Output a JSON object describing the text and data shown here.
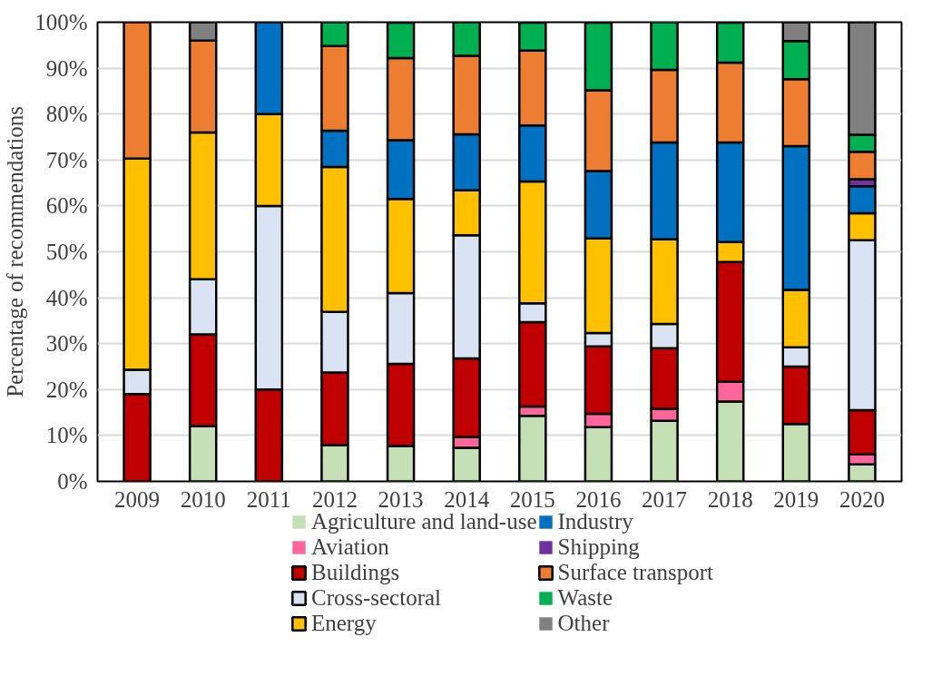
{
  "chart_data": {
    "type": "bar",
    "stacked": true,
    "ylabel": "Percentage of recommendations",
    "categories": [
      "2009",
      "2010",
      "2011",
      "2012",
      "2013",
      "2014",
      "2015",
      "2016",
      "2017",
      "2018",
      "2019",
      "2020"
    ],
    "ylim": [
      0,
      100
    ],
    "yticks": [
      {
        "value": 0,
        "label": "0%"
      },
      {
        "value": 10,
        "label": "10%"
      },
      {
        "value": 20,
        "label": "20%"
      },
      {
        "value": 30,
        "label": "30%"
      },
      {
        "value": 40,
        "label": "40%"
      },
      {
        "value": 50,
        "label": "50%"
      },
      {
        "value": 60,
        "label": "60%"
      },
      {
        "value": 70,
        "label": "70%"
      },
      {
        "value": 80,
        "label": "80%"
      },
      {
        "value": 90,
        "label": "90%"
      },
      {
        "value": 100,
        "label": "100%"
      }
    ],
    "grid": "y",
    "legend": "bottom",
    "series": [
      {
        "name": "Agriculture and land-use",
        "color": "#c5e0b4",
        "values": [
          0,
          12,
          0,
          7.9,
          7.7,
          7.3,
          14.3,
          11.8,
          13.2,
          17.4,
          12.5,
          3.7
        ]
      },
      {
        "name": "Aviation",
        "color": "#ff6699",
        "values": [
          0,
          0,
          0,
          0,
          0,
          2.4,
          2,
          2.9,
          2.6,
          4.3,
          0,
          2.2
        ]
      },
      {
        "name": "Buildings",
        "color": "#c00000",
        "values": [
          19,
          20,
          20,
          15.8,
          17.9,
          17.1,
          18.4,
          14.7,
          13.2,
          26.1,
          12.5,
          9.6
        ]
      },
      {
        "name": "Cross-sectoral",
        "color": "#dae3f3",
        "values": [
          5.3,
          12,
          40,
          13.2,
          15.4,
          26.8,
          4.1,
          2.9,
          5.3,
          0,
          4.2,
          37
        ]
      },
      {
        "name": "Energy",
        "color": "#ffc000",
        "values": [
          46,
          32,
          20,
          31.6,
          20.5,
          9.8,
          26.5,
          20.6,
          18.4,
          4.3,
          12.5,
          5.9
        ]
      },
      {
        "name": "Industry",
        "color": "#0070c0",
        "values": [
          0,
          0,
          20,
          7.9,
          12.8,
          12.2,
          12.2,
          14.7,
          21.1,
          21.7,
          31.3,
          5.9
        ]
      },
      {
        "name": "Shipping",
        "color": "#7030a0",
        "values": [
          0,
          0,
          0,
          0,
          0,
          0,
          0,
          0,
          0,
          0,
          0,
          1.5
        ]
      },
      {
        "name": "Surface transport",
        "color": "#ed7d31",
        "values": [
          29.7,
          20,
          0,
          18.4,
          17.9,
          17.1,
          16.3,
          17.6,
          15.8,
          17.4,
          14.6,
          6
        ]
      },
      {
        "name": "Waste",
        "color": "#00b050",
        "values": [
          0,
          0,
          0,
          5.3,
          7.7,
          7.3,
          6.1,
          14.7,
          10.5,
          8.7,
          8.3,
          3.7
        ]
      },
      {
        "name": "Other",
        "color": "#808080",
        "values": [
          0,
          4,
          0,
          0,
          0,
          0,
          0,
          0,
          0,
          0,
          4.2,
          24.5
        ]
      }
    ]
  }
}
